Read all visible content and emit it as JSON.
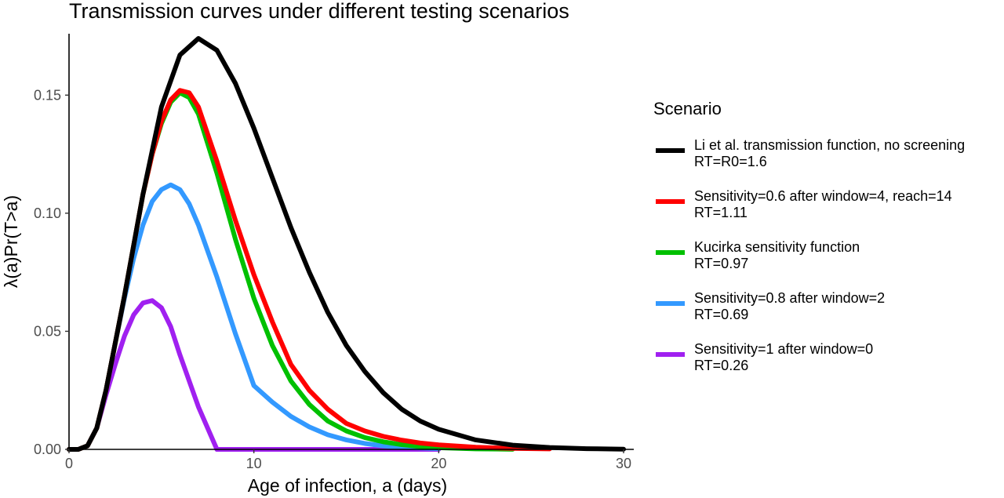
{
  "chart_data": {
    "type": "line",
    "title": "Transmission curves under different testing scenarios",
    "xlabel": "Age of infection, a (days)",
    "ylabel": "λ(a)Pr(T>a)",
    "xlim": [
      0,
      30
    ],
    "ylim": [
      0,
      0.176
    ],
    "x_ticks": [
      0,
      10,
      20,
      30
    ],
    "x_tick_labels": [
      "0",
      "10",
      "20",
      "30"
    ],
    "y_ticks": [
      0,
      0.05,
      0.1,
      0.15
    ],
    "y_tick_labels": [
      "0.00",
      "0.05",
      "0.10",
      "0.15"
    ],
    "grid": false,
    "legend": {
      "title": "Scenario",
      "position": "right"
    },
    "series": [
      {
        "name": "Li et al. transmission function, no screening",
        "rt_label": "RT=R0=1.6",
        "color": "#000000",
        "points": [
          [
            0,
            0
          ],
          [
            0.5,
            0
          ],
          [
            1,
            0.0015
          ],
          [
            1.5,
            0.009
          ],
          [
            2,
            0.025
          ],
          [
            3,
            0.065
          ],
          [
            4,
            0.108
          ],
          [
            5,
            0.145
          ],
          [
            6,
            0.167
          ],
          [
            7,
            0.174
          ],
          [
            8,
            0.169
          ],
          [
            9,
            0.155
          ],
          [
            10,
            0.136
          ],
          [
            11,
            0.115
          ],
          [
            12,
            0.094
          ],
          [
            13,
            0.075
          ],
          [
            14,
            0.058
          ],
          [
            15,
            0.044
          ],
          [
            16,
            0.033
          ],
          [
            17,
            0.024
          ],
          [
            18,
            0.017
          ],
          [
            19,
            0.012
          ],
          [
            20,
            0.0085
          ],
          [
            22,
            0.004
          ],
          [
            24,
            0.0018
          ],
          [
            26,
            0.0008
          ],
          [
            28,
            0.0003
          ],
          [
            30,
            0.0001
          ]
        ]
      },
      {
        "name": "Sensitivity=0.6 after window=4, reach=14",
        "rt_label": "RT=1.11",
        "color": "#ff0000",
        "points": [
          [
            0,
            0
          ],
          [
            0.5,
            0
          ],
          [
            1,
            0.0015
          ],
          [
            1.5,
            0.009
          ],
          [
            2,
            0.025
          ],
          [
            3,
            0.065
          ],
          [
            4,
            0.108
          ],
          [
            4.5,
            0.125
          ],
          [
            5,
            0.139
          ],
          [
            5.5,
            0.148
          ],
          [
            6,
            0.152
          ],
          [
            6.5,
            0.151
          ],
          [
            7,
            0.145
          ],
          [
            8,
            0.122
          ],
          [
            9,
            0.097
          ],
          [
            10,
            0.074
          ],
          [
            11,
            0.054
          ],
          [
            12,
            0.036
          ],
          [
            13,
            0.025
          ],
          [
            14,
            0.017
          ],
          [
            15,
            0.011
          ],
          [
            16,
            0.0078
          ],
          [
            17,
            0.0055
          ],
          [
            18,
            0.0039
          ],
          [
            19,
            0.0027
          ],
          [
            20,
            0.0019
          ],
          [
            22,
            0.0009
          ],
          [
            24,
            0.0004
          ],
          [
            26,
            0.0002
          ]
        ]
      },
      {
        "name": "Kucirka sensitivity function",
        "rt_label": "RT=0.97",
        "color": "#00c000",
        "points": [
          [
            0,
            0
          ],
          [
            0.5,
            0
          ],
          [
            1,
            0.0015
          ],
          [
            1.5,
            0.009
          ],
          [
            2,
            0.025
          ],
          [
            3,
            0.065
          ],
          [
            4,
            0.108
          ],
          [
            4.5,
            0.125
          ],
          [
            5,
            0.138
          ],
          [
            5.5,
            0.147
          ],
          [
            6,
            0.151
          ],
          [
            6.5,
            0.149
          ],
          [
            7,
            0.142
          ],
          [
            8,
            0.117
          ],
          [
            9,
            0.089
          ],
          [
            10,
            0.064
          ],
          [
            11,
            0.044
          ],
          [
            12,
            0.029
          ],
          [
            13,
            0.019
          ],
          [
            14,
            0.012
          ],
          [
            15,
            0.0078
          ],
          [
            16,
            0.005
          ],
          [
            17,
            0.0032
          ],
          [
            18,
            0.002
          ],
          [
            19,
            0.0012
          ],
          [
            20,
            0.0007
          ],
          [
            22,
            0.0002
          ],
          [
            24,
            5e-05
          ]
        ]
      },
      {
        "name": "Sensitivity=0.8 after window=2",
        "rt_label": "RT=0.69",
        "color": "#3399ff",
        "points": [
          [
            0,
            0
          ],
          [
            0.5,
            0
          ],
          [
            1,
            0.0015
          ],
          [
            1.5,
            0.009
          ],
          [
            2,
            0.025
          ],
          [
            2.5,
            0.045
          ],
          [
            3,
            0.064
          ],
          [
            3.5,
            0.081
          ],
          [
            4,
            0.095
          ],
          [
            4.5,
            0.105
          ],
          [
            5,
            0.11
          ],
          [
            5.5,
            0.112
          ],
          [
            6,
            0.11
          ],
          [
            6.5,
            0.104
          ],
          [
            7,
            0.095
          ],
          [
            8,
            0.073
          ],
          [
            9,
            0.049
          ],
          [
            10,
            0.027
          ],
          [
            11,
            0.02
          ],
          [
            12,
            0.014
          ],
          [
            13,
            0.0095
          ],
          [
            14,
            0.0062
          ],
          [
            15,
            0.004
          ],
          [
            16,
            0.0025
          ],
          [
            17,
            0.0015
          ],
          [
            18,
            0.0009
          ],
          [
            20,
            0.0003
          ]
        ]
      },
      {
        "name": "Sensitivity=1 after window=0",
        "rt_label": "RT=0.26",
        "color": "#a020f0",
        "points": [
          [
            0,
            0
          ],
          [
            0.5,
            0
          ],
          [
            1,
            0.0015
          ],
          [
            1.5,
            0.009
          ],
          [
            2,
            0.023
          ],
          [
            2.5,
            0.036
          ],
          [
            3,
            0.048
          ],
          [
            3.5,
            0.057
          ],
          [
            4,
            0.062
          ],
          [
            4.5,
            0.063
          ],
          [
            5,
            0.06
          ],
          [
            5.5,
            0.052
          ],
          [
            6,
            0.04
          ],
          [
            7,
            0.018
          ],
          [
            8,
            0
          ],
          [
            10,
            0
          ],
          [
            15,
            0
          ],
          [
            20,
            0
          ]
        ]
      }
    ]
  }
}
